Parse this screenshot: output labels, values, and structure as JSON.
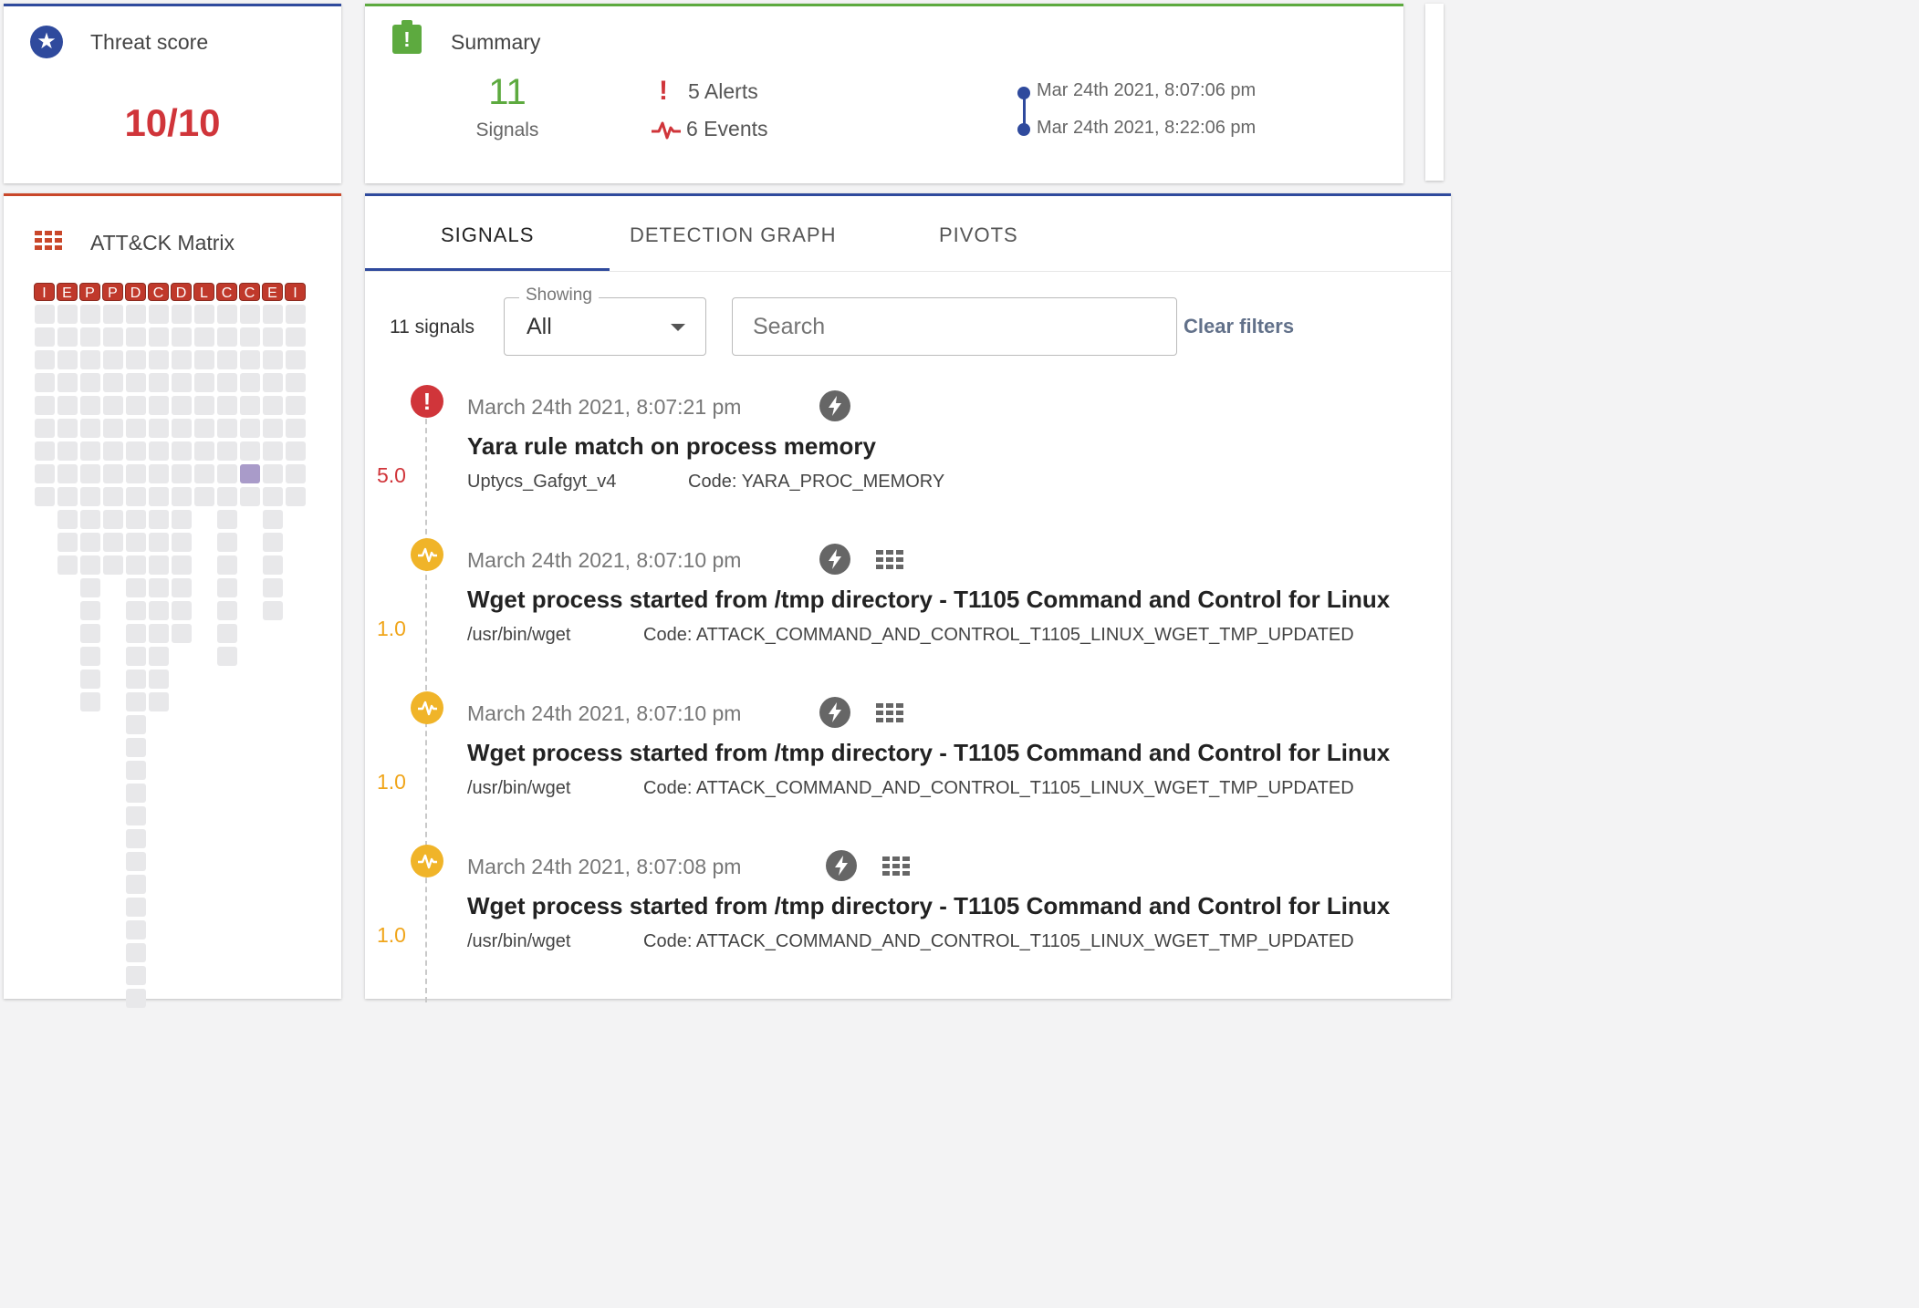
{
  "threat": {
    "title": "Threat score",
    "score": "10/10",
    "icon": "star-icon"
  },
  "summary": {
    "title": "Summary",
    "signal_count": "11",
    "signal_label": "Signals",
    "alerts": "5 Alerts",
    "events": "6 Events",
    "start_time": "Mar 24th 2021, 8:07:06 pm",
    "end_time": "Mar 24th 2021, 8:22:06 pm"
  },
  "matrix": {
    "title": "ATT&CK Matrix",
    "tactics": [
      "I",
      "E",
      "P",
      "P",
      "D",
      "C",
      "D",
      "L",
      "C",
      "C",
      "E",
      "I"
    ],
    "column_cells": [
      9,
      12,
      18,
      12,
      31,
      18,
      15,
      9,
      16,
      9,
      14,
      9
    ],
    "column_offsets": [
      0,
      0,
      0,
      0,
      0,
      0,
      0,
      0,
      0,
      0,
      0,
      0
    ],
    "highlight": {
      "column": 9,
      "row": 7
    },
    "colors": {
      "tactic": "#c0392b",
      "cell": "#e8e8ea",
      "highlight": "#a99bc9"
    }
  },
  "tabs": [
    {
      "label": "SIGNALS",
      "active": true
    },
    {
      "label": "DETECTION GRAPH",
      "active": false
    },
    {
      "label": "PIVOTS",
      "active": false
    }
  ],
  "filters": {
    "count_label": "11 signals",
    "showing_label": "Showing",
    "showing_value": "All",
    "search_placeholder": "Search",
    "clear_label": "Clear filters"
  },
  "signals": [
    {
      "severity": "alert",
      "score": "5.0",
      "score_color": "#d0353a",
      "date": "March 24th 2021, 8:07:21 pm",
      "title": "Yara rule match on process memory",
      "source": "Uptycs_Gafgyt_v4",
      "code": "Code: YARA_PROC_MEMORY",
      "has_grid": false
    },
    {
      "severity": "event",
      "score": "1.0",
      "score_color": "#f0a51a",
      "date": "March 24th 2021, 8:07:10 pm",
      "title": "Wget process started from /tmp directory - T1105 Command and Control for Linux",
      "source": "/usr/bin/wget",
      "code": "Code: ATTACK_COMMAND_AND_CONTROL_T1105_LINUX_WGET_TMP_UPDATED",
      "has_grid": true
    },
    {
      "severity": "event",
      "score": "1.0",
      "score_color": "#f0a51a",
      "date": "March 24th 2021, 8:07:10 pm",
      "title": "Wget process started from /tmp directory - T1105 Command and Control for Linux",
      "source": "/usr/bin/wget",
      "code": "Code: ATTACK_COMMAND_AND_CONTROL_T1105_LINUX_WGET_TMP_UPDATED",
      "has_grid": true
    },
    {
      "severity": "event",
      "score": "1.0",
      "score_color": "#f0a51a",
      "date": "March 24th 2021, 8:07:08 pm",
      "title": "Wget process started from /tmp directory - T1105 Command and Control for Linux",
      "source": "/usr/bin/wget",
      "code": "Code: ATTACK_COMMAND_AND_CONTROL_T1105_LINUX_WGET_TMP_UPDATED",
      "has_grid": true
    }
  ]
}
